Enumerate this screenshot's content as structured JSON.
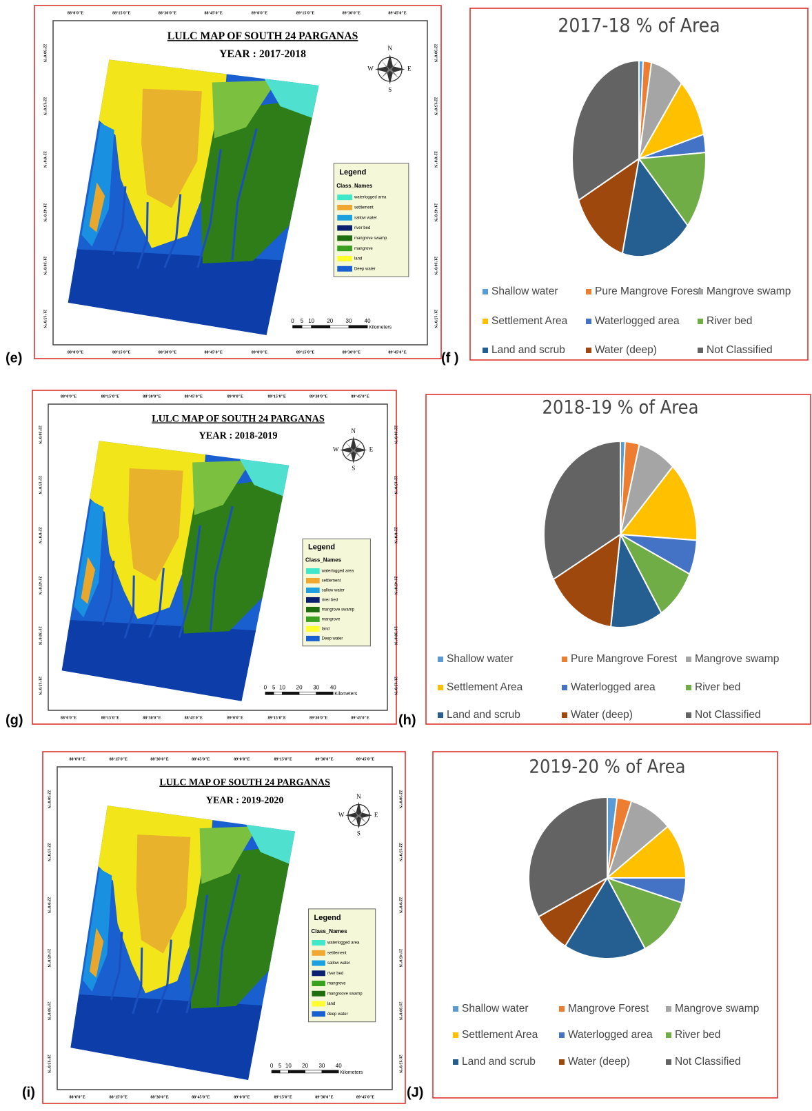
{
  "panel_labels": [
    "(e)",
    "(f )",
    "(g)",
    "(h)",
    "(i)",
    "(J)"
  ],
  "map_common": {
    "title": "LULC MAP OF SOUTH 24 PARGANAS",
    "lon_labels": [
      "88°0'0\"E",
      "88°15'0\"E",
      "88°30'0\"E",
      "88°45'0\"E",
      "89°0'0\"E",
      "89°15'0\"E",
      "89°30'0\"E",
      "89°45'0\"E"
    ],
    "lat_labels": [
      "22°30'0\"N",
      "22°15'0\"N",
      "22°0'0\"N",
      "21°45'0\"N",
      "21°30'0\"N",
      "21°15'0\"N"
    ],
    "compass": [
      "N",
      "E",
      "S",
      "W"
    ],
    "legend_title": "Legend",
    "legend_subtitle": "Class_Names",
    "scale_labels": [
      0,
      5,
      10,
      20,
      30,
      40
    ],
    "scale_unit": "Kilometers"
  },
  "maps": [
    {
      "year": "YEAR : 2017-2018",
      "legend": [
        {
          "label": "waterlogged area",
          "color": "#3ee8c8"
        },
        {
          "label": "settlement",
          "color": "#f0a830"
        },
        {
          "label": "sallow water",
          "color": "#1ca0e0"
        },
        {
          "label": "river bed",
          "color": "#0a1f70"
        },
        {
          "label": "mangrove swamp",
          "color": "#1e6e10"
        },
        {
          "label": "mangrove",
          "color": "#3aa020"
        },
        {
          "label": "land",
          "color": "#ffff30"
        },
        {
          "label": "Deep water",
          "color": "#1a5fd0"
        }
      ]
    },
    {
      "year": "YEAR : 2018-2019",
      "legend": [
        {
          "label": "waterlogged area",
          "color": "#3ee8c8"
        },
        {
          "label": "settlement",
          "color": "#f0a830"
        },
        {
          "label": "sallow water",
          "color": "#1ca0e0"
        },
        {
          "label": "river bed",
          "color": "#0a1f70"
        },
        {
          "label": "mangrove swamp",
          "color": "#1e6e10"
        },
        {
          "label": "mangrove",
          "color": "#3aa020"
        },
        {
          "label": "land",
          "color": "#ffff30"
        },
        {
          "label": "Deep water",
          "color": "#1a5fd0"
        }
      ]
    },
    {
      "year": "YEAR : 2019-2020",
      "legend": [
        {
          "label": "waterlogged area",
          "color": "#3ee8c8"
        },
        {
          "label": "settlement",
          "color": "#f0a830"
        },
        {
          "label": "sallow water",
          "color": "#1ca0e0"
        },
        {
          "label": "river bed",
          "color": "#0a1f70"
        },
        {
          "label": "mangrove",
          "color": "#3aa020"
        },
        {
          "label": "mangroove swamp",
          "color": "#1e6e10"
        },
        {
          "label": "land",
          "color": "#ffff30"
        },
        {
          "label": "deep water",
          "color": "#1a5fd0"
        }
      ]
    }
  ],
  "chart_data": [
    {
      "type": "pie",
      "title": "2017-18 % of Area",
      "categories": [
        "Shallow water",
        "Pure Mangrove Forest",
        "Mangrove swamp",
        "Settlement Area",
        "Waterlogged area",
        "River bed",
        "Land and scrub",
        "Water (deep)",
        "Not Classified"
      ],
      "values": [
        1,
        2,
        8,
        10,
        3,
        13,
        17,
        14,
        32
      ],
      "colors": [
        "#5b9bd5",
        "#ed7d31",
        "#a5a5a5",
        "#ffc000",
        "#4472c4",
        "#70ad47",
        "#255e91",
        "#9e480e",
        "#636363"
      ]
    },
    {
      "type": "pie",
      "title": "2018-19 % of Area",
      "categories": [
        "Shallow water",
        "Pure Mangrove Forest",
        "Mangrove swamp",
        "Settlement Area",
        "Waterlogged area",
        "River bed",
        "Land and scrub",
        "Water (deep)",
        "Not Classified"
      ],
      "values": [
        1,
        3,
        8,
        14,
        6,
        9,
        11,
        15,
        33
      ],
      "colors": [
        "#5b9bd5",
        "#ed7d31",
        "#a5a5a5",
        "#ffc000",
        "#4472c4",
        "#70ad47",
        "#255e91",
        "#9e480e",
        "#636363"
      ]
    },
    {
      "type": "pie",
      "title": "2019-20 % of Area",
      "categories": [
        "Shallow water",
        "Mangrove Forest",
        "Mangrove swamp",
        "Settlement Area",
        "Waterlogged area",
        "River bed",
        "Land and scrub",
        "Water (deep)",
        "Not Classified"
      ],
      "values": [
        2,
        3,
        9,
        11,
        5,
        12,
        17,
        8,
        33
      ],
      "colors": [
        "#5b9bd5",
        "#ed7d31",
        "#a5a5a5",
        "#ffc000",
        "#4472c4",
        "#70ad47",
        "#255e91",
        "#9e480e",
        "#636363"
      ]
    }
  ]
}
